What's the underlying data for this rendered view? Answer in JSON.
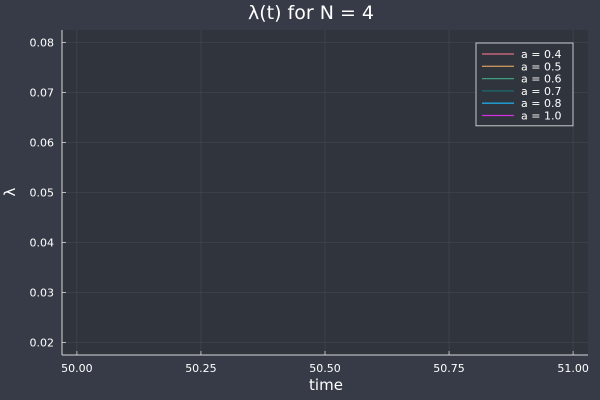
{
  "chart_data": {
    "type": "line",
    "title": "λ(t) for N = 4",
    "xlabel": "time",
    "ylabel": "λ",
    "xlim": [
      49.97,
      51.03
    ],
    "ylim": [
      0.0175,
      0.0825
    ],
    "xticks": [
      {
        "value": 50.0,
        "label": "50.00"
      },
      {
        "value": 50.25,
        "label": "50.25"
      },
      {
        "value": 50.5,
        "label": "50.50"
      },
      {
        "value": 50.75,
        "label": "50.75"
      },
      {
        "value": 51.0,
        "label": "51.00"
      }
    ],
    "yticks": [
      {
        "value": 0.02,
        "label": "0.02"
      },
      {
        "value": 0.03,
        "label": "0.03"
      },
      {
        "value": 0.04,
        "label": "0.04"
      },
      {
        "value": 0.05,
        "label": "0.05"
      },
      {
        "value": 0.06,
        "label": "0.06"
      },
      {
        "value": 0.07,
        "label": "0.07"
      },
      {
        "value": 0.08,
        "label": "0.08"
      }
    ],
    "grid": true,
    "legend_position": "top-right",
    "series": [
      {
        "name": "a = 0.4",
        "color": "#e26f86",
        "x": [],
        "y": []
      },
      {
        "name": "a = 0.5",
        "color": "#c8915a",
        "x": [],
        "y": []
      },
      {
        "name": "a = 0.6",
        "color": "#3f9e80",
        "x": [],
        "y": []
      },
      {
        "name": "a = 0.7",
        "color": "#1e6b70",
        "x": [],
        "y": []
      },
      {
        "name": "a = 0.8",
        "color": "#1ea6e0",
        "x": [],
        "y": []
      },
      {
        "name": "a = 1.0",
        "color": "#d42ee0",
        "x": [],
        "y": []
      }
    ]
  },
  "colors": {
    "background": "#363b47",
    "plot_background": "#30343d",
    "grid": "#444a55",
    "axis": "#d8d8d8",
    "text": "#ffffff"
  }
}
